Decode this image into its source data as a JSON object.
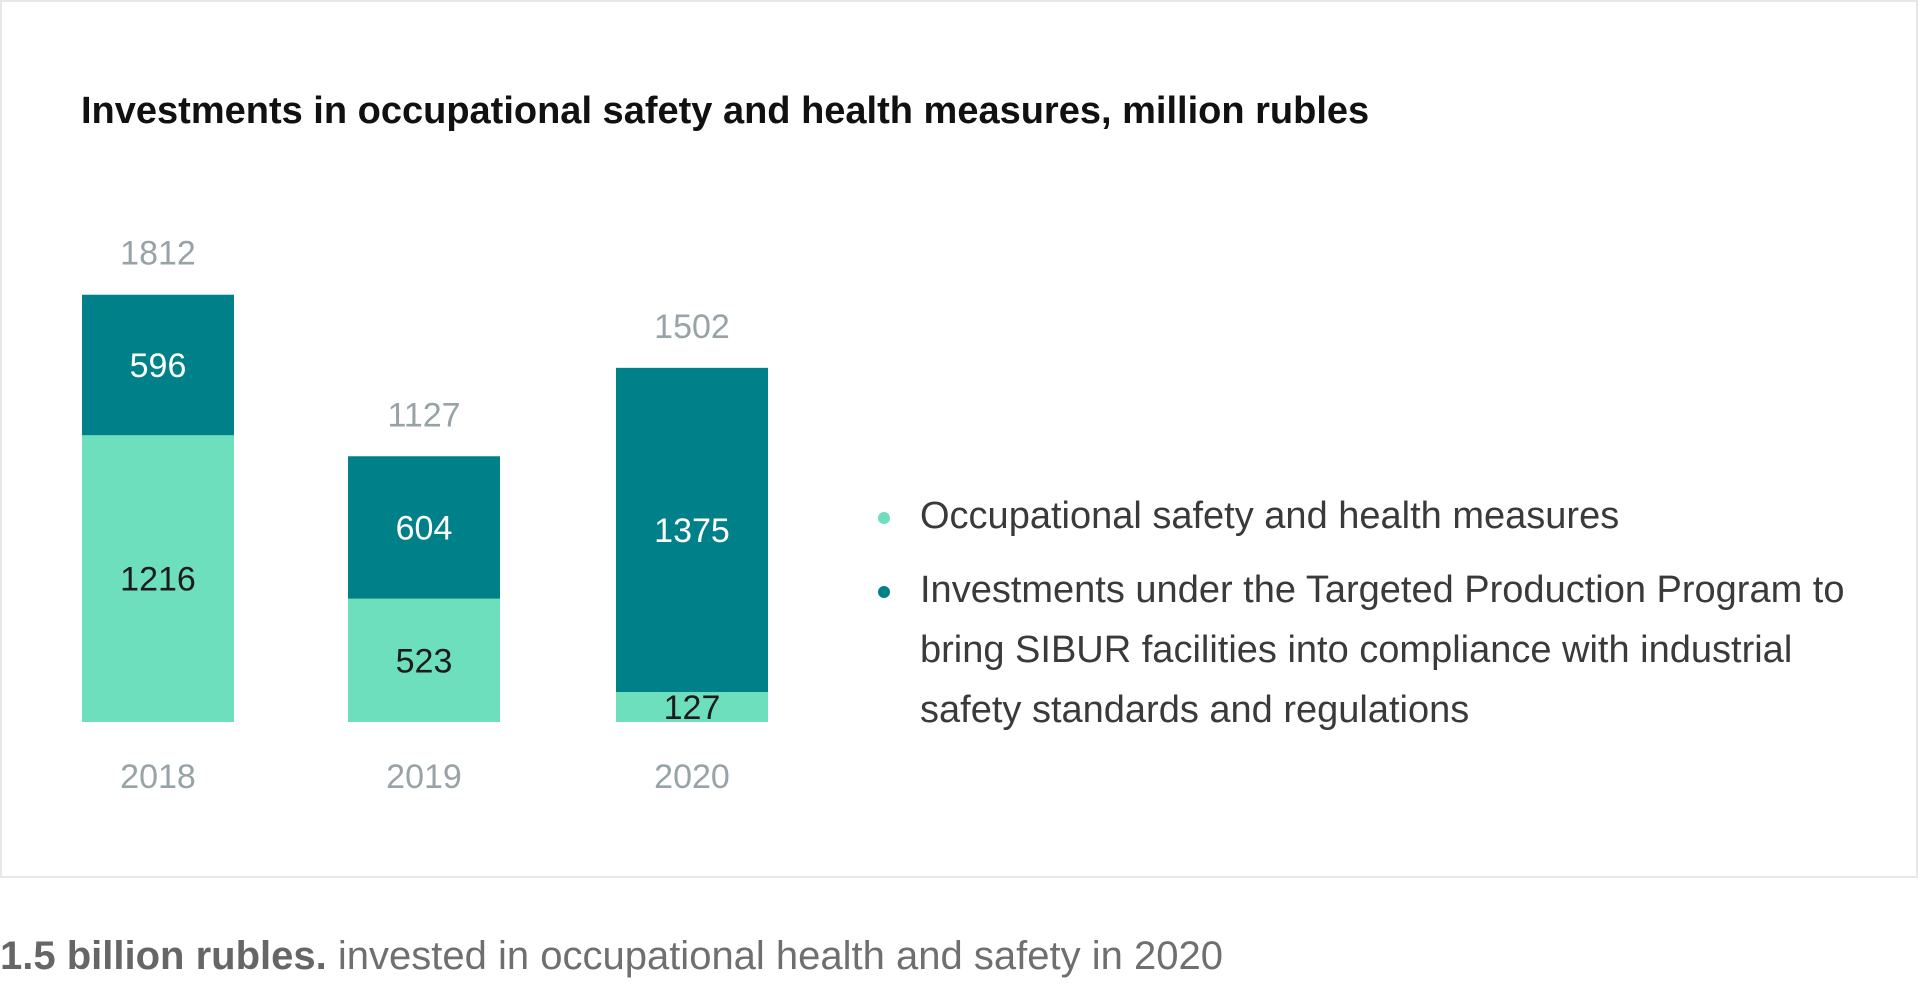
{
  "chart_data": {
    "type": "bar",
    "stacked": true,
    "title": "Investments in occupational safety and health measures, million rubles",
    "categories": [
      "2018",
      "2019",
      "2020"
    ],
    "totals": [
      1812,
      1127,
      1502
    ],
    "series": [
      {
        "name": "Occupational safety and health measures",
        "values": [
          1216,
          523,
          127
        ],
        "color": "#6ddfbd"
      },
      {
        "name": "Investments under the Targeted Production Program to bring SIBUR facilities into compliance with industrial safety standards and regulations",
        "values": [
          596,
          604,
          1375
        ],
        "color": "#00818a"
      }
    ],
    "colors": {
      "total_label": "#97a3a7",
      "category_label": "#97a3a7",
      "label_on_dark": "#ffffff",
      "label_on_light": "#1c1c1c"
    },
    "grid": false,
    "legend_position": "right"
  },
  "footer": {
    "highlight": "1.5 billion rubles.",
    "text": " invested in occupational health and safety in 2020"
  }
}
